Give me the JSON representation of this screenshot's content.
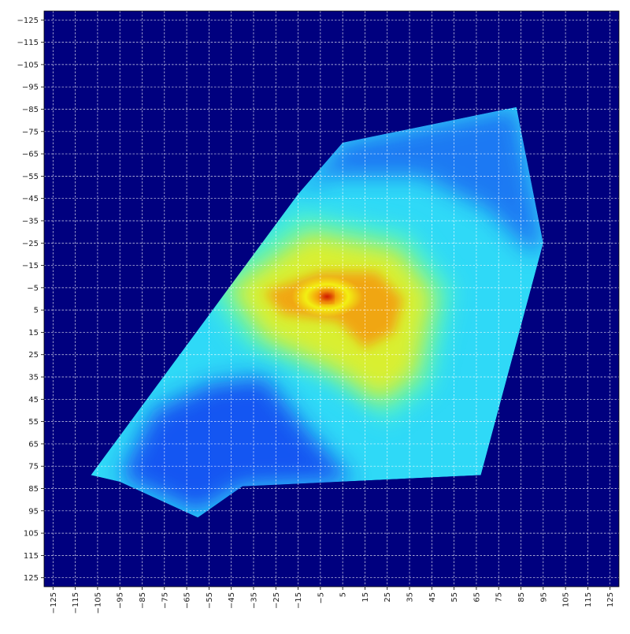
{
  "chart_data": {
    "type": "heatmap",
    "title": "",
    "xlabel": "",
    "ylabel": "",
    "xlim": [
      -129,
      129
    ],
    "ylim": [
      -129,
      129
    ],
    "y_inverted": true,
    "x_ticks": [
      -125,
      -115,
      -105,
      -95,
      -85,
      -75,
      -65,
      -55,
      -45,
      -35,
      -25,
      -15,
      -5,
      5,
      15,
      25,
      35,
      45,
      55,
      65,
      75,
      85,
      95,
      105,
      115,
      125
    ],
    "y_ticks": [
      -125,
      -115,
      -105,
      -95,
      -85,
      -75,
      -65,
      -55,
      -45,
      -35,
      -25,
      -15,
      -5,
      5,
      15,
      25,
      35,
      45,
      55,
      65,
      75,
      85,
      95,
      105,
      115,
      125
    ],
    "x_tick_labels": [
      "−125",
      "−115",
      "−105",
      "−95",
      "−85",
      "−75",
      "−65",
      "−55",
      "−45",
      "−35",
      "−25",
      "−15",
      "−5",
      "5",
      "15",
      "25",
      "35",
      "45",
      "55",
      "65",
      "75",
      "85",
      "95",
      "105",
      "115",
      "125"
    ],
    "y_tick_labels": [
      "−125",
      "−115",
      "−105",
      "−95",
      "−85",
      "−75",
      "−65",
      "−55",
      "−45",
      "−35",
      "−25",
      "−15",
      "−5",
      "5",
      "15",
      "25",
      "35",
      "45",
      "55",
      "65",
      "75",
      "85",
      "95",
      "105",
      "115",
      "125"
    ],
    "grid": true,
    "grid_style": "dashed",
    "colormap": "jet",
    "background_color": "#00007f",
    "footprint_polygon": [
      [
        83,
        -86
      ],
      [
        95,
        -25
      ],
      [
        67,
        79
      ],
      [
        -40,
        84
      ],
      [
        -60,
        98
      ],
      [
        -95,
        82
      ],
      [
        -108,
        79
      ],
      [
        -15,
        -47
      ],
      [
        5,
        -70
      ]
    ],
    "hotspot_center": [
      -2,
      -1
    ],
    "hot_region_polygon": [
      [
        -30,
        -3
      ],
      [
        -5,
        -12
      ],
      [
        20,
        -12
      ],
      [
        32,
        0
      ],
      [
        28,
        15
      ],
      [
        15,
        22
      ],
      [
        3,
        10
      ],
      [
        -22,
        7
      ]
    ],
    "warm_region_polygon": [
      [
        -60,
        -8
      ],
      [
        -15,
        -40
      ],
      [
        35,
        -30
      ],
      [
        55,
        -5
      ],
      [
        45,
        40
      ],
      [
        25,
        55
      ],
      [
        0,
        38
      ],
      [
        -40,
        20
      ]
    ],
    "cool_region_polygon": [
      [
        -80,
        50
      ],
      [
        -55,
        38
      ],
      [
        -30,
        35
      ],
      [
        -10,
        60
      ],
      [
        10,
        82
      ],
      [
        -40,
        84
      ],
      [
        -60,
        96
      ],
      [
        -95,
        80
      ]
    ],
    "cool_edge_polygon": [
      [
        -15,
        -47
      ],
      [
        5,
        -70
      ],
      [
        83,
        -86
      ],
      [
        95,
        -25
      ],
      [
        90,
        -20
      ],
      [
        70,
        -40
      ],
      [
        40,
        -55
      ],
      [
        0,
        -55
      ]
    ],
    "colors": {
      "background": "#00007f",
      "deep_blue": "#0a2af0",
      "cyan": "#2fd9f7",
      "aqua_green": "#53f5c7",
      "yellow": "#f2ef12",
      "orange": "#f59a0a",
      "red": "#d01a00",
      "grid": "#ffffff"
    }
  }
}
